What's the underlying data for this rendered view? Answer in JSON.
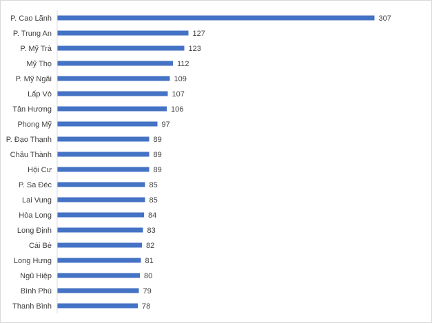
{
  "chart_data": {
    "type": "bar",
    "orientation": "horizontal",
    "title": "",
    "xlabel": "",
    "ylabel": "",
    "categories": [
      "P. Cao Lãnh",
      "P. Trung An",
      "P. Mỹ Trà",
      "Mỹ Thọ",
      "P. Mỹ Ngãi",
      "Lấp Vò",
      "Tân Hương",
      "Phong Mỹ",
      "P. Đạo Thạnh",
      "Châu Thành",
      "Hội Cư",
      "P. Sa Đéc",
      "Lai Vung",
      "Hòa Long",
      "Long Định",
      "Cái Bè",
      "Long Hưng",
      "Ngũ Hiệp",
      "Bình Phú",
      "Thanh Bình"
    ],
    "values": [
      307,
      127,
      123,
      112,
      109,
      107,
      106,
      97,
      89,
      89,
      89,
      85,
      85,
      84,
      83,
      82,
      81,
      80,
      79,
      78
    ],
    "data_labels": [
      "307",
      "127",
      "123",
      "112",
      "109",
      "107",
      "106",
      "97",
      "89",
      "89",
      "89",
      "85",
      "85",
      "84",
      "83",
      "82",
      "81",
      "80",
      "79",
      "78"
    ],
    "xlim": [
      0,
      330
    ],
    "grid": false,
    "legend": "none",
    "bar_color": "#4472c4",
    "axis_color": "#d9d9d9"
  }
}
